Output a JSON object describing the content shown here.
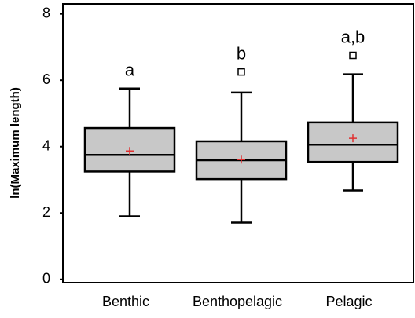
{
  "chart_data": {
    "type": "box",
    "y_label": "ln(Maximum length)",
    "categories": [
      "Benthic",
      "Benthopelagic",
      "Pelagic"
    ],
    "boxes": [
      {
        "min": 1.9,
        "q1": 3.25,
        "median": 3.75,
        "q3": 4.56,
        "max": 5.75,
        "mean": 3.87,
        "outliers": []
      },
      {
        "min": 1.71,
        "q1": 3.02,
        "median": 3.59,
        "q3": 4.16,
        "max": 5.63,
        "mean": 3.61,
        "outliers": [
          6.25
        ]
      },
      {
        "min": 2.68,
        "q1": 3.54,
        "median": 4.06,
        "q3": 4.73,
        "max": 6.18,
        "mean": 4.25,
        "outliers": [
          6.75
        ]
      }
    ],
    "annotations": [
      "a",
      "b",
      "a,b"
    ],
    "box_color": "#c8c8c8",
    "mean_color": "#e03030",
    "ylim": [
      -0.1,
      8.3
    ],
    "yticks": [
      0,
      2,
      4,
      6,
      8
    ]
  }
}
